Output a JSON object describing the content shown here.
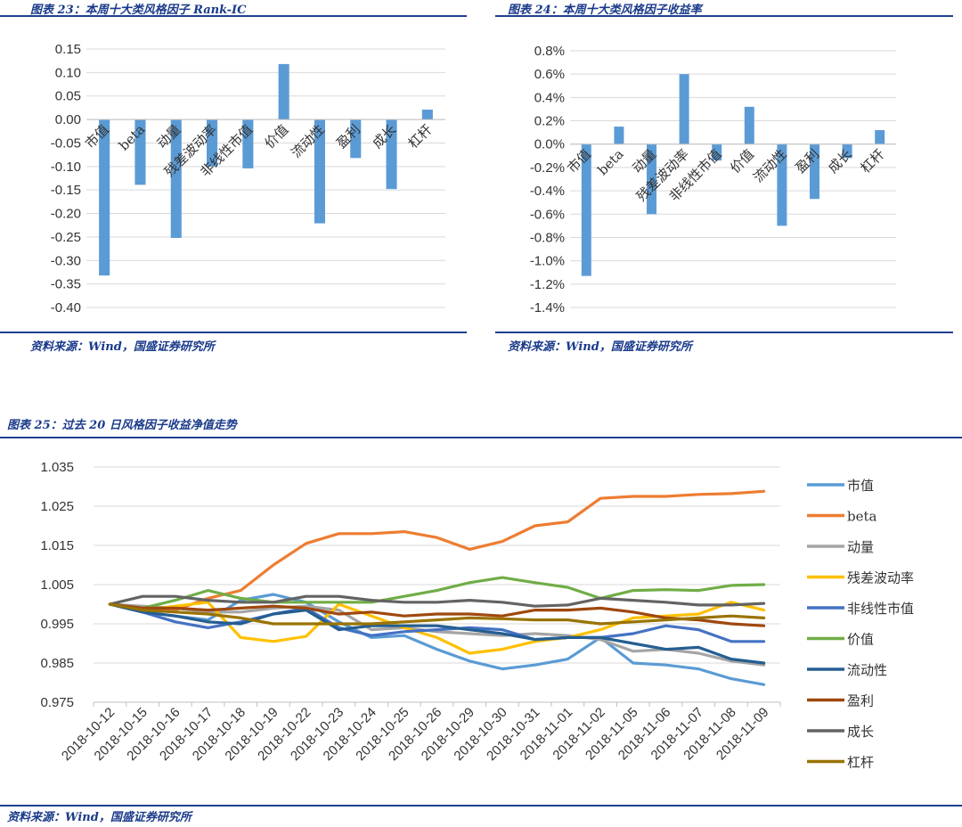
{
  "captions": {
    "fig23": "图表 23：本周十大类风格因子 Rank-IC",
    "fig24": "图表 24：本周十大类风格因子收益率",
    "fig25": "图表 25：过去 20 日风格因子收益净值走势"
  },
  "sources": {
    "fig23": "资料来源：Wind，国盛证券研究所",
    "fig24": "资料来源：Wind，国盛证券研究所",
    "fig25": "资料来源：Wind，国盛证券研究所"
  },
  "colors": {
    "bar": "#5b9bd5",
    "rule": "#1f3f8f",
    "caption": "#1a3a8a",
    "grid": "#d9d9d9"
  },
  "chart_data": [
    {
      "id": "fig23",
      "type": "bar",
      "categories": [
        "市值",
        "beta",
        "动量",
        "残差波动率",
        "非线性市值",
        "价值",
        "流动性",
        "盈利",
        "成长",
        "杠杆"
      ],
      "values": [
        -0.332,
        -0.139,
        -0.252,
        -0.1,
        -0.104,
        0.118,
        -0.221,
        -0.082,
        -0.148,
        0.021
      ],
      "ylim": [
        -0.4,
        0.15
      ],
      "yticks": [
        "0.15",
        "0.10",
        "0.05",
        "0.00",
        "-0.05",
        "-0.10",
        "-0.15",
        "-0.20",
        "-0.25",
        "-0.30",
        "-0.35",
        "-0.40"
      ],
      "grid": true
    },
    {
      "id": "fig24",
      "type": "bar",
      "categories": [
        "市值",
        "beta",
        "动量",
        "残差波动率",
        "非线性市值",
        "价值",
        "流动性",
        "盈利",
        "成长",
        "杠杆"
      ],
      "values": [
        -1.13,
        0.15,
        -0.6,
        0.6,
        -0.14,
        0.32,
        -0.7,
        -0.47,
        -0.12,
        0.12
      ],
      "unit": "%",
      "ylim": [
        -1.4,
        0.8
      ],
      "yticks": [
        "0.8%",
        "0.6%",
        "0.4%",
        "0.2%",
        "0.0%",
        "-0.2%",
        "-0.4%",
        "-0.6%",
        "-0.8%",
        "-1.0%",
        "-1.2%",
        "-1.4%"
      ],
      "grid": true
    },
    {
      "id": "fig25",
      "type": "line",
      "x": [
        "2018-10-12",
        "2018-10-15",
        "2018-10-16",
        "2018-10-17",
        "2018-10-18",
        "2018-10-19",
        "2018-10-22",
        "2018-10-23",
        "2018-10-24",
        "2018-10-25",
        "2018-10-26",
        "2018-10-29",
        "2018-10-30",
        "2018-10-31",
        "2018-11-01",
        "2018-11-02",
        "2018-11-05",
        "2018-11-06",
        "2018-11-07",
        "2018-11-08",
        "2018-11-09"
      ],
      "ylim": [
        0.975,
        1.035
      ],
      "yticks": [
        "1.035",
        "1.025",
        "1.015",
        "1.005",
        "0.995",
        "0.985",
        "0.975"
      ],
      "grid": true,
      "legend": "right",
      "series": [
        {
          "name": "市值",
          "color": "#5b9bd5",
          "values": [
            1.0,
            0.998,
            0.997,
            0.996,
            1.001,
            1.0025,
            1.0005,
            0.9955,
            0.9915,
            0.992,
            0.9885,
            0.9855,
            0.9835,
            0.9845,
            0.986,
            0.9915,
            0.985,
            0.9845,
            0.9835,
            0.981,
            0.9795
          ]
        },
        {
          "name": "beta",
          "color": "#ed7d31",
          "values": [
            1.0,
            0.9985,
            0.9985,
            1.0015,
            1.0035,
            1.01,
            1.0155,
            1.018,
            1.018,
            1.0185,
            1.017,
            1.014,
            1.016,
            1.02,
            1.021,
            1.027,
            1.0275,
            1.0275,
            1.028,
            1.0282,
            1.0288
          ]
        },
        {
          "name": "动量",
          "color": "#a5a5a5",
          "values": [
            1.0,
            0.9995,
            0.999,
            0.998,
            0.998,
            0.999,
            0.9995,
            0.9985,
            0.9935,
            0.994,
            0.993,
            0.9925,
            0.992,
            0.9925,
            0.992,
            0.991,
            0.988,
            0.9885,
            0.9875,
            0.9855,
            0.9845
          ]
        },
        {
          "name": "残差波动率",
          "color": "#ffc000",
          "values": [
            1.0,
            0.9985,
            0.9995,
            1.0005,
            0.9915,
            0.9905,
            0.9918,
            1.0,
            0.997,
            0.994,
            0.9915,
            0.9875,
            0.9885,
            0.9905,
            0.9915,
            0.9935,
            0.9965,
            0.997,
            0.9975,
            1.0005,
            0.9985
          ]
        },
        {
          "name": "非线性市值",
          "color": "#4472c4",
          "values": [
            1.0,
            0.998,
            0.9955,
            0.994,
            0.9955,
            0.9975,
            0.999,
            0.994,
            0.992,
            0.993,
            0.9935,
            0.994,
            0.9935,
            0.991,
            0.9915,
            0.9915,
            0.9925,
            0.9945,
            0.9935,
            0.9905,
            0.9905
          ]
        },
        {
          "name": "价值",
          "color": "#70ad47",
          "values": [
            1.0,
            0.999,
            1.001,
            1.0035,
            1.0015,
            1.0005,
            1.0005,
            1.0005,
            1.0005,
            1.002,
            1.0035,
            1.0055,
            1.0068,
            1.0055,
            1.0043,
            1.0015,
            1.0035,
            1.0037,
            1.0035,
            1.0048,
            1.005
          ]
        },
        {
          "name": "流动性",
          "color": "#255e91",
          "values": [
            1.0,
            0.998,
            0.997,
            0.9955,
            0.995,
            0.9975,
            0.9985,
            0.9935,
            0.9945,
            0.9945,
            0.9945,
            0.9935,
            0.9925,
            0.991,
            0.9915,
            0.9915,
            0.99,
            0.9885,
            0.989,
            0.986,
            0.985
          ]
        },
        {
          "name": "盈利",
          "color": "#9e480e",
          "values": [
            1.0,
            0.999,
            0.999,
            0.9985,
            0.999,
            0.9995,
            0.999,
            0.9975,
            0.998,
            0.997,
            0.9975,
            0.9975,
            0.997,
            0.9985,
            0.9985,
            0.999,
            0.998,
            0.9965,
            0.996,
            0.995,
            0.9945
          ]
        },
        {
          "name": "成长",
          "color": "#636363",
          "values": [
            1.0,
            1.002,
            1.002,
            1.001,
            1.0005,
            1.0005,
            1.002,
            1.002,
            1.001,
            1.0005,
            1.0005,
            1.001,
            1.0005,
            0.9995,
            0.9998,
            1.0015,
            1.001,
            1.0005,
            0.9998,
            0.9998,
            1.0002
          ]
        },
        {
          "name": "杠杆",
          "color": "#997300",
          "values": [
            1.0,
            0.9985,
            0.998,
            0.9975,
            0.9965,
            0.995,
            0.995,
            0.995,
            0.995,
            0.9955,
            0.996,
            0.9965,
            0.9963,
            0.996,
            0.996,
            0.995,
            0.9955,
            0.996,
            0.9965,
            0.997,
            0.9965
          ]
        }
      ]
    }
  ]
}
